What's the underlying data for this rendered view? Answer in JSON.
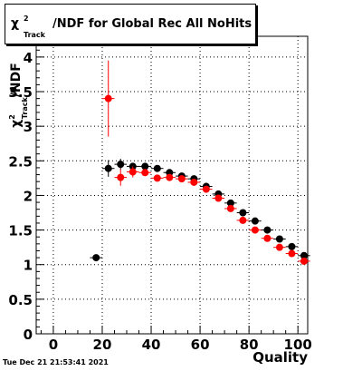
{
  "title": {
    "chi": "χ",
    "sup": "2",
    "sub": "Track",
    "rest": "/NDF for Global Rec All NoHits"
  },
  "timestamp": "Tue Dec 21 21:53:41 2021",
  "chart_data": {
    "type": "scatter",
    "xlabel": "Quality",
    "ylabel": "χ²_Track/NDF",
    "xlim": [
      -7,
      104
    ],
    "ylim": [
      0,
      4.3
    ],
    "xticks": [
      0,
      20,
      40,
      60,
      80,
      100
    ],
    "yticks": [
      0,
      0.5,
      1,
      1.5,
      2,
      2.5,
      3,
      3.5,
      4
    ],
    "grid": true,
    "series": [
      {
        "color": "#000000",
        "points": [
          {
            "x": 17.5,
            "y": 1.1,
            "err": 0.03
          },
          {
            "x": 22.5,
            "y": 2.39,
            "err": 0.12
          },
          {
            "x": 27.5,
            "y": 2.45,
            "err": 0.08
          },
          {
            "x": 32.5,
            "y": 2.42,
            "err": 0.05
          },
          {
            "x": 37.5,
            "y": 2.42,
            "err": 0.04
          },
          {
            "x": 42.5,
            "y": 2.39,
            "err": 0.03
          },
          {
            "x": 47.5,
            "y": 2.33,
            "err": 0.03
          },
          {
            "x": 52.5,
            "y": 2.28,
            "err": 0.03
          },
          {
            "x": 57.5,
            "y": 2.24,
            "err": 0.03
          },
          {
            "x": 62.5,
            "y": 2.13,
            "err": 0.03
          },
          {
            "x": 67.5,
            "y": 2.02,
            "err": 0.03
          },
          {
            "x": 72.5,
            "y": 1.89,
            "err": 0.03
          },
          {
            "x": 77.5,
            "y": 1.75,
            "err": 0.03
          },
          {
            "x": 82.5,
            "y": 1.63,
            "err": 0.03
          },
          {
            "x": 87.5,
            "y": 1.5,
            "err": 0.03
          },
          {
            "x": 92.5,
            "y": 1.37,
            "err": 0.03
          },
          {
            "x": 97.5,
            "y": 1.26,
            "err": 0.03
          },
          {
            "x": 102.5,
            "y": 1.13,
            "err": 0.03
          }
        ]
      },
      {
        "color": "#ff0000",
        "points": [
          {
            "x": 22.5,
            "y": 3.4,
            "err": 0.55
          },
          {
            "x": 27.5,
            "y": 2.26,
            "err": 0.12
          },
          {
            "x": 32.5,
            "y": 2.34,
            "err": 0.08
          },
          {
            "x": 37.5,
            "y": 2.33,
            "err": 0.05
          },
          {
            "x": 42.5,
            "y": 2.25,
            "err": 0.04
          },
          {
            "x": 47.5,
            "y": 2.26,
            "err": 0.03
          },
          {
            "x": 52.5,
            "y": 2.24,
            "err": 0.03
          },
          {
            "x": 57.5,
            "y": 2.19,
            "err": 0.03
          },
          {
            "x": 62.5,
            "y": 2.09,
            "err": 0.03
          },
          {
            "x": 67.5,
            "y": 1.96,
            "err": 0.03
          },
          {
            "x": 72.5,
            "y": 1.81,
            "err": 0.03
          },
          {
            "x": 77.5,
            "y": 1.64,
            "err": 0.03
          },
          {
            "x": 82.5,
            "y": 1.5,
            "err": 0.03
          },
          {
            "x": 87.5,
            "y": 1.38,
            "err": 0.03
          },
          {
            "x": 92.5,
            "y": 1.25,
            "err": 0.03
          },
          {
            "x": 97.5,
            "y": 1.16,
            "err": 0.03
          },
          {
            "x": 102.5,
            "y": 1.05,
            "err": 0.03
          }
        ]
      }
    ]
  }
}
